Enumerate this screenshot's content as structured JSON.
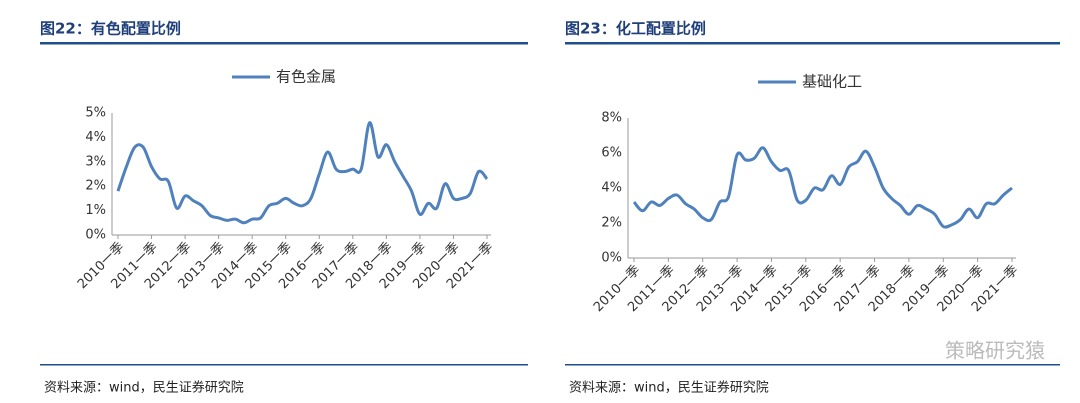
{
  "chart_data": [
    {
      "type": "line",
      "title": "图22：有色配置比例",
      "source": "资料来源：wind，民生证券研究院",
      "categories": [
        "2010一季",
        null,
        null,
        null,
        "2011一季",
        null,
        null,
        null,
        "2012一季",
        null,
        null,
        null,
        "2013一季",
        null,
        null,
        null,
        "2014一季",
        null,
        null,
        null,
        "2015一季",
        null,
        null,
        null,
        "2016一季",
        null,
        null,
        null,
        "2017一季",
        null,
        null,
        null,
        "2018一季",
        null,
        null,
        null,
        "2019一季",
        null,
        null,
        null,
        "2020一季",
        null,
        null,
        null,
        "2021一季"
      ],
      "series": [
        {
          "name": "有色金属",
          "color": "#4f81bd",
          "values": [
            1.8,
            2.8,
            3.6,
            3.6,
            2.8,
            2.3,
            2.2,
            1.1,
            1.6,
            1.4,
            1.2,
            0.8,
            0.7,
            0.6,
            0.65,
            0.5,
            0.65,
            0.7,
            1.2,
            1.3,
            1.5,
            1.3,
            1.2,
            1.5,
            2.5,
            3.4,
            2.7,
            2.6,
            2.7,
            2.7,
            4.6,
            3.2,
            3.7,
            3.0,
            2.4,
            1.8,
            0.85,
            1.3,
            1.1,
            2.1,
            1.5,
            1.5,
            1.7,
            2.6,
            2.3
          ]
        }
      ],
      "ylim": [
        0,
        5
      ],
      "yticks": [
        {
          "value": 0,
          "label": "0%"
        },
        {
          "value": 1,
          "label": "1%"
        },
        {
          "value": 2,
          "label": "2%"
        },
        {
          "value": 3,
          "label": "3%"
        },
        {
          "value": 4,
          "label": "4%"
        },
        {
          "value": 5,
          "label": "5%"
        }
      ],
      "legend": "top"
    },
    {
      "type": "line",
      "title": "图23：化工配置比例",
      "source": "资料来源：wind，民生证券研究院",
      "categories": [
        "2010一季",
        null,
        null,
        null,
        "2011一季",
        null,
        null,
        null,
        "2012一季",
        null,
        null,
        null,
        "2013一季",
        null,
        null,
        null,
        "2014一季",
        null,
        null,
        null,
        "2015一季",
        null,
        null,
        null,
        "2016一季",
        null,
        null,
        null,
        "2017一季",
        null,
        null,
        null,
        "2018一季",
        null,
        null,
        null,
        "2019一季",
        null,
        null,
        null,
        "2020一季",
        null,
        null,
        null,
        "2021一季"
      ],
      "series": [
        {
          "name": "基础化工",
          "color": "#4f81bd",
          "values": [
            3.2,
            2.7,
            3.2,
            3.0,
            3.4,
            3.6,
            3.1,
            2.8,
            2.3,
            2.2,
            3.2,
            3.5,
            5.9,
            5.6,
            5.7,
            6.3,
            5.5,
            5.0,
            5.0,
            3.3,
            3.3,
            4.0,
            3.9,
            4.7,
            4.2,
            5.2,
            5.5,
            6.1,
            5.2,
            4.0,
            3.4,
            3.0,
            2.5,
            3.0,
            2.8,
            2.5,
            1.8,
            1.9,
            2.2,
            2.8,
            2.3,
            3.1,
            3.1,
            3.6,
            4.0
          ]
        }
      ],
      "ylim": [
        0,
        8
      ],
      "yticks": [
        {
          "value": 0,
          "label": "0%"
        },
        {
          "value": 2,
          "label": "2%"
        },
        {
          "value": 4,
          "label": "4%"
        },
        {
          "value": 6,
          "label": "6%"
        },
        {
          "value": 8,
          "label": "8%"
        }
      ],
      "legend": "top"
    }
  ],
  "watermark": "策略研究猿"
}
